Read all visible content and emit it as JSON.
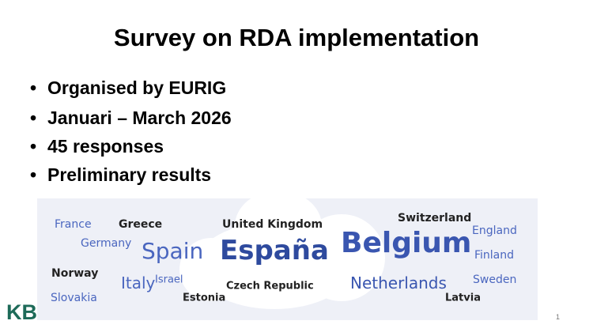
{
  "title": "Survey on RDA implementation",
  "bullets": [
    "Organised by EURIG",
    "Januari – March 2026",
    "45 responses",
    "Preliminary results"
  ],
  "word_cloud": {
    "words": [
      "France",
      "Greece",
      "Germany",
      "Spain",
      "United Kingdom",
      "España",
      "Switzerland",
      "Belgium",
      "England",
      "Finland",
      "Norway",
      "Italy",
      "Israel",
      "Czech Republic",
      "Netherlands",
      "Sweden",
      "Slovakia",
      "Estonia",
      "Latvia"
    ]
  },
  "footer": {
    "logo": "KB",
    "page_number": "1"
  }
}
